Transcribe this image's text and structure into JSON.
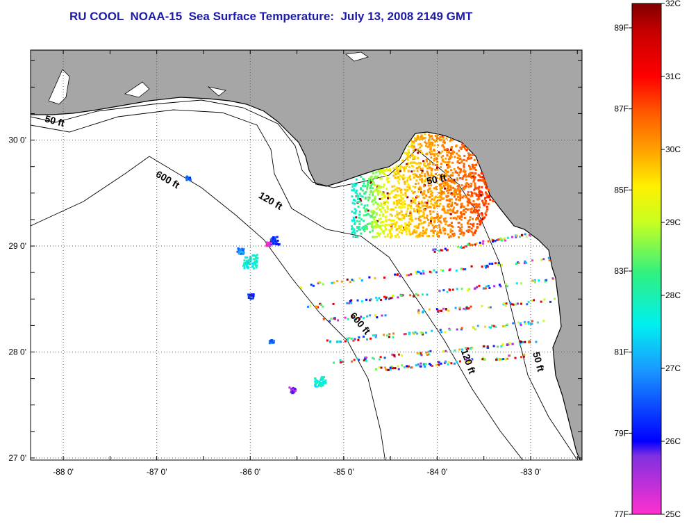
{
  "title": "RU COOL  NOAA-15  Sea Surface Temperature:  July 13, 2008 2149 GMT",
  "colors": {
    "land": "#a6a6a6",
    "water": "#ffffff",
    "title": "#1c1ca8",
    "coast": "#000000"
  },
  "map": {
    "lon_range": [
      -88.35,
      -82.45
    ],
    "lat_range": [
      26.98,
      30.85
    ],
    "lon_ticks": [
      {
        "value": -88,
        "label": "-88 0'"
      },
      {
        "value": -87,
        "label": "-87 0'"
      },
      {
        "value": -86,
        "label": "-86 0'"
      },
      {
        "value": -85,
        "label": "-85 0'"
      },
      {
        "value": -84,
        "label": "-84 0'"
      },
      {
        "value": -83,
        "label": "-83 0'"
      }
    ],
    "lat_ticks": [
      {
        "value": 30,
        "label": "30 0'"
      },
      {
        "value": 29,
        "label": "29 0'"
      },
      {
        "value": 28,
        "label": "28 0'"
      },
      {
        "value": 27,
        "label": "27 0'"
      }
    ],
    "contour_labels": [
      {
        "text": "50 ft",
        "lon": -88.1,
        "lat": 30.15,
        "rot": 15
      },
      {
        "text": "600 ft",
        "lon": -86.9,
        "lat": 29.6,
        "rot": 30
      },
      {
        "text": "120 ft",
        "lon": -85.8,
        "lat": 29.4,
        "rot": 30
      },
      {
        "text": "50 ft",
        "lon": -84.0,
        "lat": 29.6,
        "rot": -12
      },
      {
        "text": "600 ft",
        "lon": -84.85,
        "lat": 28.25,
        "rot": 50
      },
      {
        "text": "120 ft",
        "lon": -83.7,
        "lat": 27.9,
        "rot": 70
      },
      {
        "text": "50 ft",
        "lon": -82.95,
        "lat": 27.9,
        "rot": 75
      }
    ]
  },
  "colorbar": {
    "celsius_ticks": [
      {
        "value": 32,
        "label": "32C"
      },
      {
        "value": 31,
        "label": "31C"
      },
      {
        "value": 30,
        "label": "30C"
      },
      {
        "value": 29,
        "label": "29C"
      },
      {
        "value": 28,
        "label": "28C"
      },
      {
        "value": 27,
        "label": "27C"
      },
      {
        "value": 26,
        "label": "26C"
      },
      {
        "value": 25,
        "label": "25C"
      }
    ],
    "fahrenheit_ticks": [
      {
        "value": 89,
        "label": "89F"
      },
      {
        "value": 87,
        "label": "87F"
      },
      {
        "value": 85,
        "label": "85F"
      },
      {
        "value": 83,
        "label": "83F"
      },
      {
        "value": 81,
        "label": "81F"
      },
      {
        "value": 79,
        "label": "79F"
      },
      {
        "value": 77,
        "label": "77F"
      }
    ],
    "range_c": [
      25,
      32
    ],
    "gradient": [
      {
        "c": 25.0,
        "color": "#ff30d0"
      },
      {
        "c": 25.8,
        "color": "#8030e0"
      },
      {
        "c": 26.0,
        "color": "#0000ff"
      },
      {
        "c": 27.0,
        "color": "#1a9cff"
      },
      {
        "c": 27.6,
        "color": "#00f0f0"
      },
      {
        "c": 28.3,
        "color": "#30f080"
      },
      {
        "c": 29.0,
        "color": "#c8ff20"
      },
      {
        "c": 29.5,
        "color": "#fff000"
      },
      {
        "c": 30.0,
        "color": "#ffa000"
      },
      {
        "c": 30.5,
        "color": "#ff5a00"
      },
      {
        "c": 31.0,
        "color": "#ff0000"
      },
      {
        "c": 31.6,
        "color": "#c80000"
      },
      {
        "c": 32.0,
        "color": "#800000"
      }
    ]
  }
}
